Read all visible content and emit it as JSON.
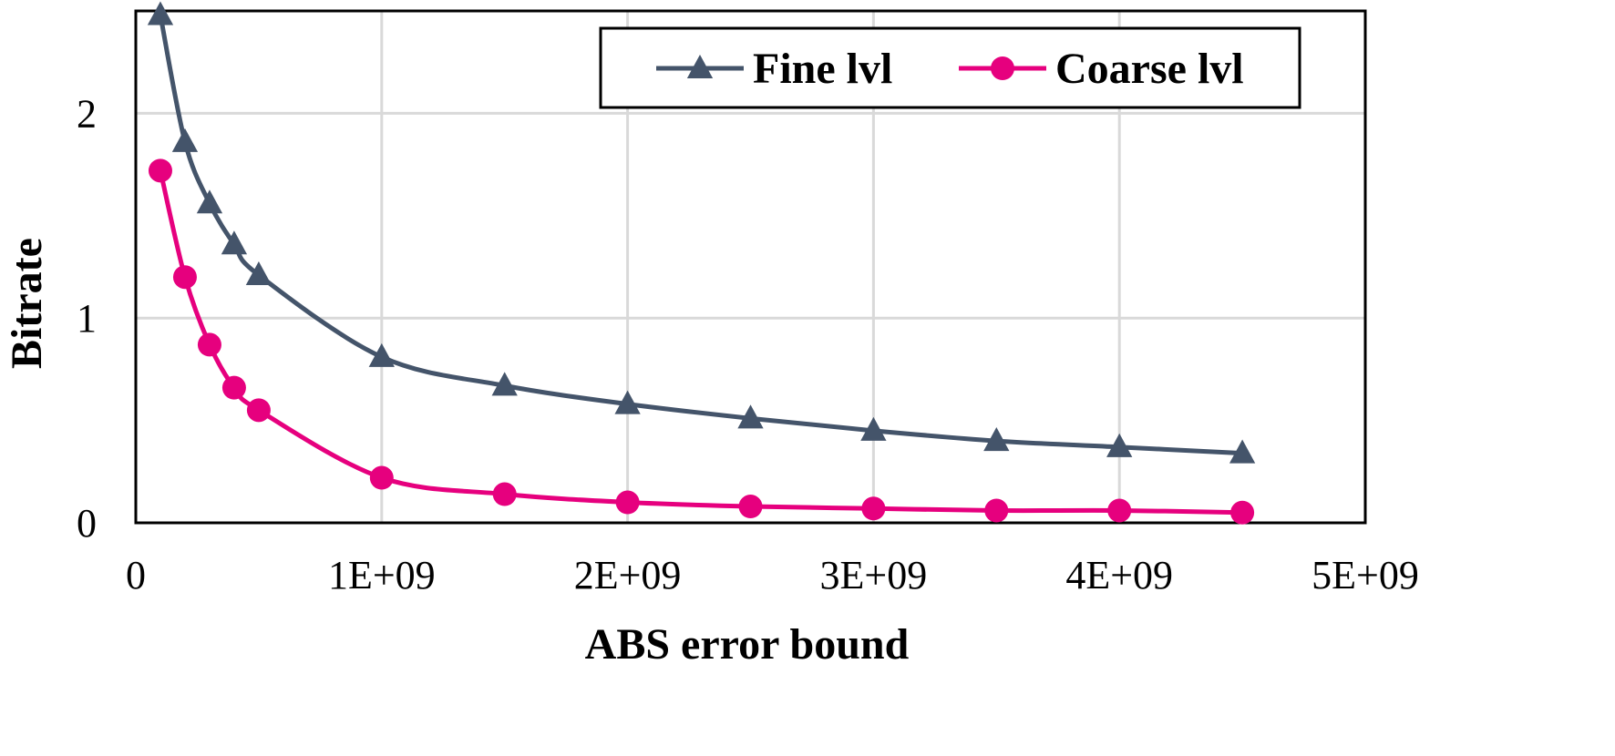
{
  "chart_data": {
    "type": "line",
    "xlabel": "ABS error bound",
    "ylabel": "Bitrate",
    "xlim": [
      0,
      5000000000
    ],
    "ylim": [
      0,
      2.5
    ],
    "xticks": [
      0,
      1000000000,
      2000000000,
      3000000000,
      4000000000,
      5000000000
    ],
    "xtick_labels": [
      "0",
      "1E+09",
      "2E+09",
      "3E+09",
      "4E+09",
      "5E+09"
    ],
    "yticks": [
      0,
      1,
      2
    ],
    "ytick_labels": [
      "0",
      "1",
      "2"
    ],
    "grid": true,
    "legend_position": "top-right",
    "series": [
      {
        "name": "Fine lvl",
        "marker": "triangle",
        "color": "#44546a",
        "x": [
          100000000,
          200000000,
          300000000,
          400000000,
          500000000,
          1000000000,
          1500000000,
          2000000000,
          2500000000,
          3000000000,
          3500000000,
          4000000000,
          4500000000
        ],
        "y": [
          2.48,
          1.86,
          1.56,
          1.36,
          1.21,
          0.81,
          0.67,
          0.58,
          0.51,
          0.45,
          0.4,
          0.37,
          0.34
        ]
      },
      {
        "name": "Coarse lvl",
        "marker": "circle",
        "color": "#e6007e",
        "x": [
          100000000,
          200000000,
          300000000,
          400000000,
          500000000,
          1000000000,
          1500000000,
          2000000000,
          2500000000,
          3000000000,
          3500000000,
          4000000000,
          4500000000
        ],
        "y": [
          1.72,
          1.2,
          0.87,
          0.66,
          0.55,
          0.22,
          0.14,
          0.1,
          0.08,
          0.07,
          0.06,
          0.06,
          0.05
        ]
      }
    ]
  }
}
